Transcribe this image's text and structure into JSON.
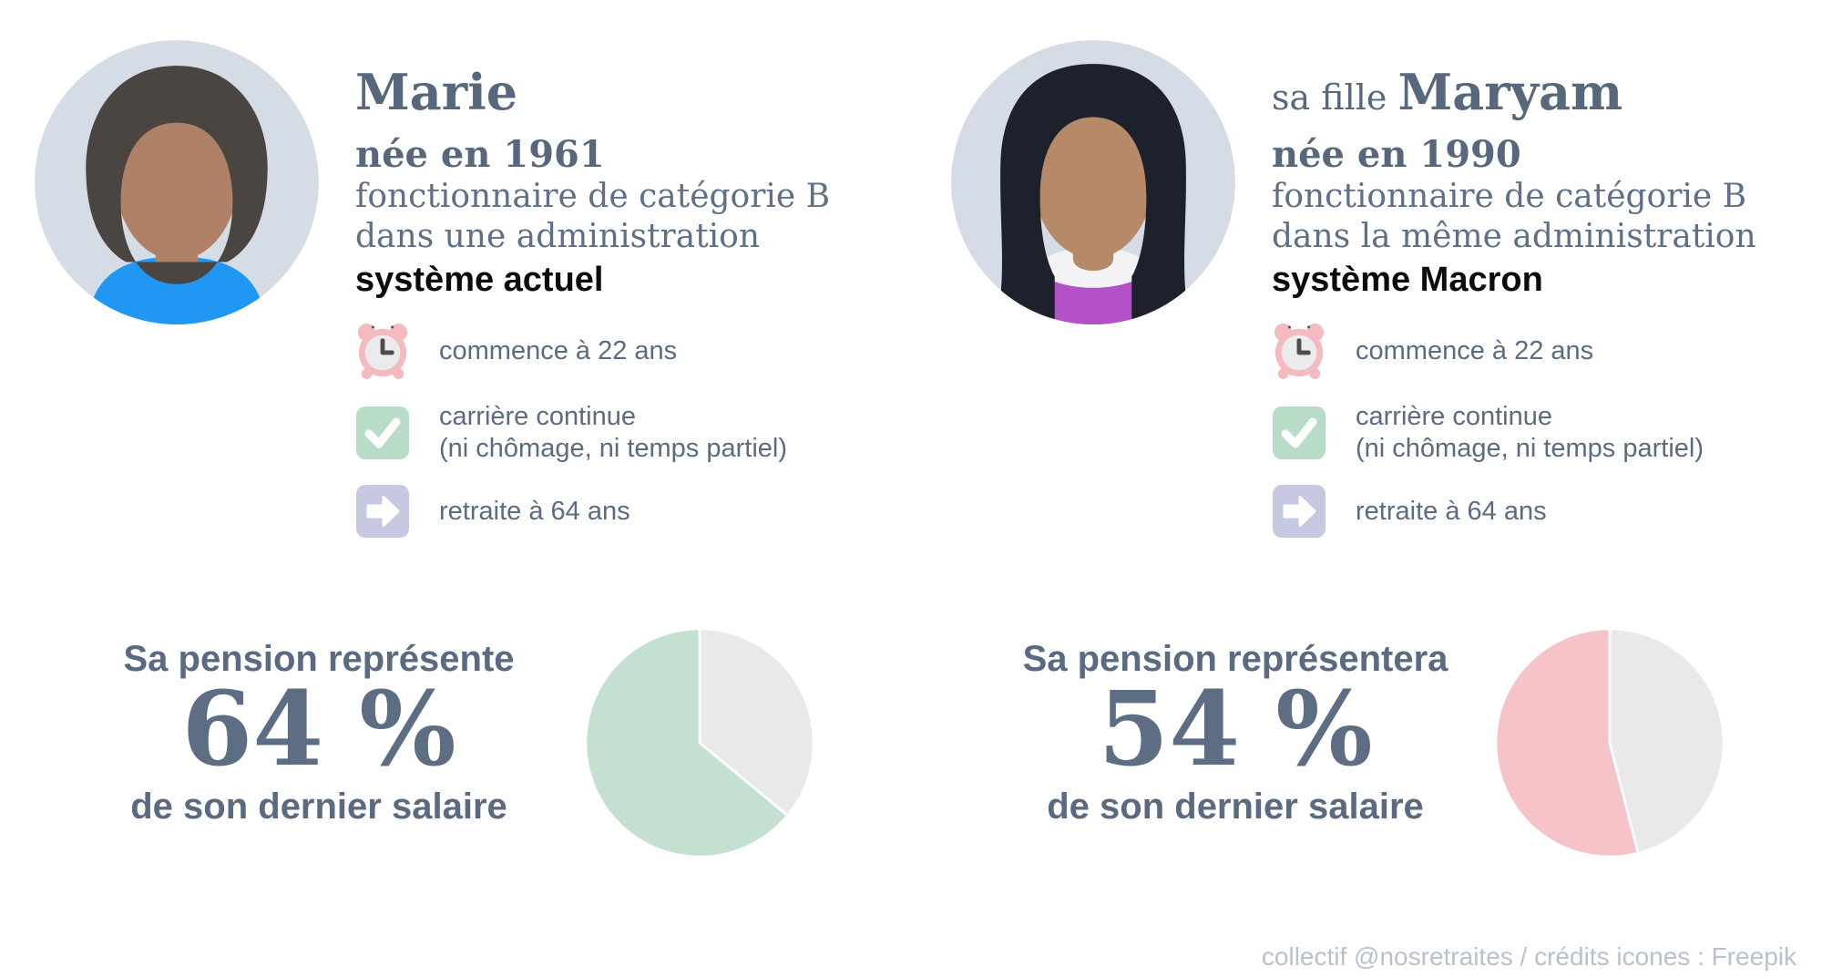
{
  "colors": {
    "text_main": "#57687d",
    "text_job": "#5f7086",
    "text_system": "#0b0b0b",
    "caption": "#5b6b80",
    "big_number": "#5d6e84",
    "avatar_background": "#d5dce6",
    "icon_clock_pink": "#f3bac0",
    "icon_check_green": "#b9dcc9",
    "icon_arrow_lavender": "#c6c9e1",
    "pie_green": "#c3e0d0",
    "pie_pink": "#f5c3c8",
    "pie_rest_gray": "#e9e9eb",
    "footer": "#b8c1cd"
  },
  "profiles": [
    {
      "name_prefix": "",
      "name": "Marie",
      "birth": "née en 1961",
      "job_line1": "fonctionnaire de catégorie B",
      "job_line2": "dans une administration",
      "system": "système actuel",
      "facts": [
        {
          "icon": "alarm-clock-icon",
          "line1": "commence à 22 ans",
          "line2": ""
        },
        {
          "icon": "check-icon",
          "line1": "carrière continue",
          "line2": "(ni chômage, ni temps partiel)"
        },
        {
          "icon": "arrow-right-icon",
          "line1": "retraite à 64 ans",
          "line2": ""
        }
      ],
      "pension_intro": "Sa pension représente",
      "pension_value": "64 %",
      "pension_outro": "de son dernier salaire"
    },
    {
      "name_prefix": "sa fille ",
      "name": "Maryam",
      "birth": "née en 1990",
      "job_line1": "fonctionnaire de catégorie B",
      "job_line2": "dans la même administration",
      "system": "système Macron",
      "facts": [
        {
          "icon": "alarm-clock-icon",
          "line1": "commence à 22 ans",
          "line2": ""
        },
        {
          "icon": "check-icon",
          "line1": "carrière continue",
          "line2": "(ni chômage, ni temps partiel)"
        },
        {
          "icon": "arrow-right-icon",
          "line1": "retraite à 64 ans",
          "line2": ""
        }
      ],
      "pension_intro": "Sa pension représentera",
      "pension_value": "54 %",
      "pension_outro": "de son dernier salaire"
    }
  ],
  "chart_data": [
    {
      "type": "pie",
      "person": "Marie",
      "title": "Sa pension représente 64 % de son dernier salaire",
      "start": "12-o-clock",
      "direction": "clockwise",
      "gap_color": "#ffffff",
      "slices": [
        {
          "label": "reste",
          "value": 36,
          "color": "#e9e9eb"
        },
        {
          "label": "pension",
          "value": 64,
          "color": "#c3e0d0"
        }
      ]
    },
    {
      "type": "pie",
      "person": "Maryam",
      "title": "Sa pension représentera 54 % de son dernier salaire",
      "start": "12-o-clock",
      "direction": "clockwise",
      "gap_color": "#ffffff",
      "slices": [
        {
          "label": "reste",
          "value": 46,
          "color": "#e9e9eb"
        },
        {
          "label": "pension",
          "value": 54,
          "color": "#f5c3c8"
        }
      ]
    }
  ],
  "footer": {
    "credit": "collectif @nosretraites / crédits icones : Freepik"
  }
}
